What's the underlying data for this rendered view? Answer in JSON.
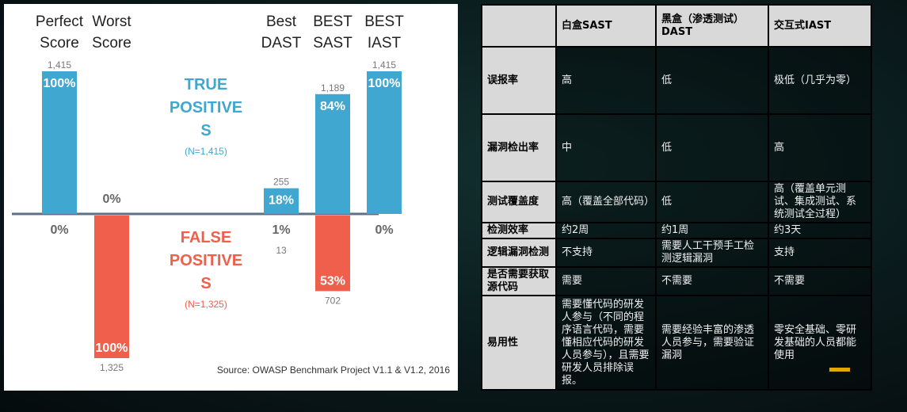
{
  "chart_data": {
    "type": "bar",
    "categories": [
      "Perfect Score",
      "Worst Score",
      "Best DAST",
      "BEST SAST",
      "BEST IAST"
    ],
    "series": [
      {
        "name": "TRUE POSITIVES",
        "n_label": "(N=1,415)",
        "percent": [
          100,
          0,
          18,
          84,
          100
        ],
        "counts": [
          "1,415",
          "",
          "255",
          "1,189",
          "1,415"
        ],
        "color": "#40a8d0"
      },
      {
        "name": "FALSE POSITIVES",
        "n_label": "(N=1,325)",
        "percent": [
          0,
          100,
          1,
          53,
          0
        ],
        "counts": [
          "",
          "1,325",
          "13",
          "702",
          ""
        ],
        "color": "#ef5f4c"
      }
    ],
    "source": "Source: OWASP Benchmark Project V1.1 & V1.2, 2016",
    "ylim": [
      -100,
      100
    ]
  },
  "table": {
    "header": [
      "",
      "白盒SAST",
      "黑盒（渗透测试）DAST",
      "交互式IAST"
    ],
    "rows": [
      [
        "误报率",
        "高",
        "低",
        "极低（几乎为零）"
      ],
      [
        "漏洞检出率",
        "中",
        "低",
        "高"
      ],
      [
        "测试覆盖度",
        "高（覆盖全部代码）",
        "低",
        "高（覆盖单元测试、集成测试、系统测试全过程）"
      ],
      [
        "检测效率",
        "约2周",
        "约1周",
        "约3天"
      ],
      [
        "逻辑漏洞检测",
        "不支持",
        "需要人工干预手工检测逻辑漏洞",
        "支持"
      ],
      [
        "是否需要获取源代码",
        "需要",
        "不需要",
        "不需要"
      ],
      [
        "易用性",
        "需要懂代码的研发人参与（不同的程序语言代码，需要懂相应代码的研发人员参与），且需要研发人员排除误报。",
        "需要经验丰富的渗透人员参与，需要验证漏洞",
        "零安全基础、零研发基础的人员都能使用"
      ]
    ]
  }
}
